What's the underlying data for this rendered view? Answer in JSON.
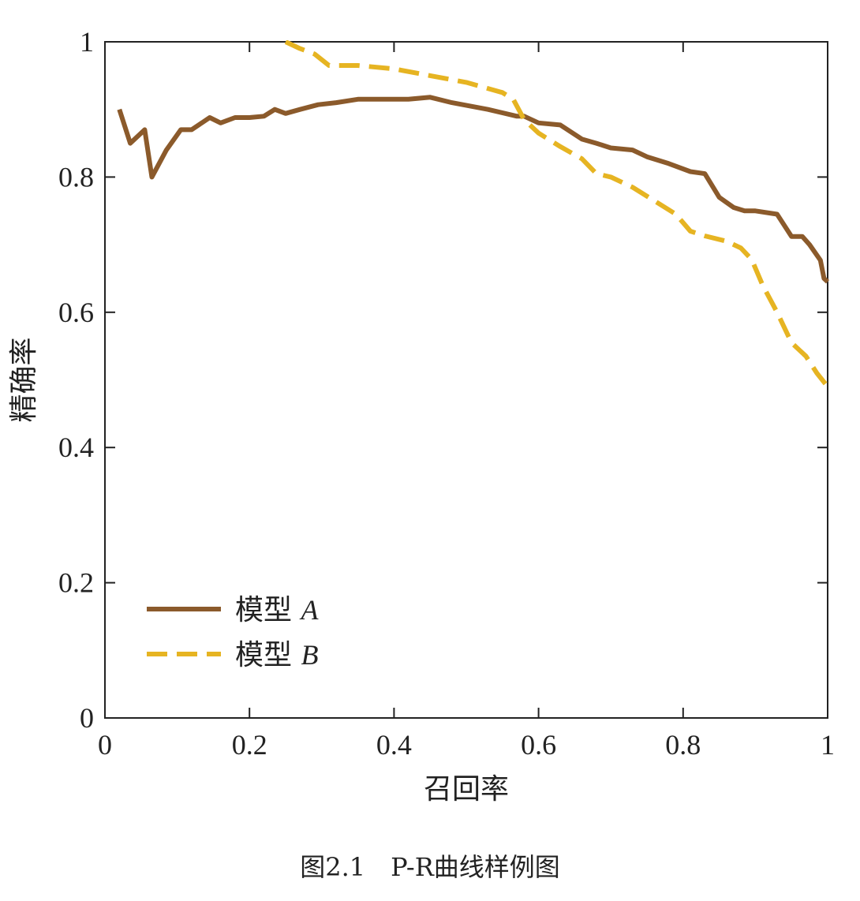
{
  "caption": "图2.1　P-R曲线样例图",
  "chart_data": {
    "type": "line",
    "title": "",
    "xlabel": "召回率",
    "ylabel": "精确率",
    "xlim": [
      0,
      1
    ],
    "ylim": [
      0,
      1
    ],
    "xticks": [
      "0",
      "0.2",
      "0.4",
      "0.6",
      "0.8",
      "1"
    ],
    "yticks": [
      "0",
      "0.2",
      "0.4",
      "0.6",
      "0.8",
      "1"
    ],
    "grid": false,
    "legend_position": "bottom-left",
    "series": [
      {
        "name_prefix": "模型",
        "name_suffix": "A",
        "name": "模型 A",
        "color": "#8B5A2B",
        "style": "solid",
        "x": [
          0.02,
          0.035,
          0.055,
          0.065,
          0.085,
          0.105,
          0.12,
          0.145,
          0.16,
          0.18,
          0.2,
          0.22,
          0.235,
          0.25,
          0.27,
          0.295,
          0.32,
          0.35,
          0.38,
          0.42,
          0.45,
          0.48,
          0.53,
          0.57,
          0.58,
          0.6,
          0.63,
          0.66,
          0.68,
          0.7,
          0.73,
          0.75,
          0.78,
          0.81,
          0.83,
          0.85,
          0.87,
          0.885,
          0.9,
          0.93,
          0.95,
          0.965,
          0.975,
          0.99,
          0.995,
          1.0
        ],
        "y": [
          0.9,
          0.85,
          0.87,
          0.8,
          0.84,
          0.87,
          0.87,
          0.888,
          0.88,
          0.888,
          0.888,
          0.89,
          0.9,
          0.894,
          0.9,
          0.907,
          0.91,
          0.915,
          0.915,
          0.915,
          0.918,
          0.91,
          0.9,
          0.89,
          0.89,
          0.88,
          0.877,
          0.856,
          0.85,
          0.843,
          0.84,
          0.83,
          0.82,
          0.808,
          0.805,
          0.77,
          0.755,
          0.75,
          0.75,
          0.745,
          0.712,
          0.712,
          0.7,
          0.677,
          0.65,
          0.645
        ]
      },
      {
        "name_prefix": "模型",
        "name_suffix": "B",
        "name": "模型 B",
        "color": "#E6B422",
        "style": "dashed",
        "x": [
          0.25,
          0.27,
          0.29,
          0.31,
          0.35,
          0.4,
          0.45,
          0.5,
          0.55,
          0.565,
          0.58,
          0.6,
          0.63,
          0.66,
          0.68,
          0.7,
          0.73,
          0.76,
          0.79,
          0.81,
          0.83,
          0.86,
          0.88,
          0.895,
          0.91,
          0.93,
          0.95,
          0.97,
          0.985,
          1.0
        ],
        "y": [
          1.0,
          0.99,
          0.982,
          0.965,
          0.965,
          0.96,
          0.95,
          0.94,
          0.925,
          0.915,
          0.885,
          0.865,
          0.845,
          0.827,
          0.805,
          0.8,
          0.785,
          0.765,
          0.745,
          0.72,
          0.713,
          0.705,
          0.695,
          0.678,
          0.64,
          0.6,
          0.555,
          0.535,
          0.51,
          0.49
        ]
      }
    ]
  }
}
